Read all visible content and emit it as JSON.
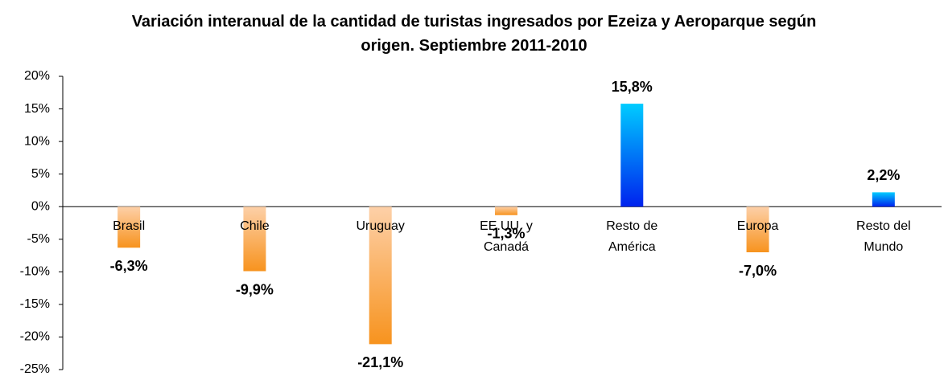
{
  "chart_data": {
    "type": "bar",
    "title": "Variación interanual de la cantidad de turistas ingresados por Ezeiza y Aeroparque según origen. Septiembre 2011-2010",
    "categories": [
      "Brasil",
      "Chile",
      "Uruguay",
      "EE.UU. y Canadá",
      "Resto de América",
      "Europa",
      "Resto del Mundo"
    ],
    "values": [
      -6.3,
      -9.9,
      -21.1,
      -1.3,
      15.8,
      -7.0,
      2.2
    ],
    "value_labels": [
      "-6,3%",
      "-9,9%",
      "-21,1%",
      "-1,3%",
      "15,8%",
      "-7,0%",
      "2,2%"
    ],
    "positive_colors": [
      "#00ccff",
      "#0022ee"
    ],
    "negative_colors": [
      "#fdd0a8",
      "#f7931e"
    ],
    "ylim": [
      -25,
      20
    ],
    "yticks": [
      {
        "value": -25,
        "label": "-25%"
      },
      {
        "value": -20,
        "label": "-20%"
      },
      {
        "value": -15,
        "label": "-15%"
      },
      {
        "value": -10,
        "label": "-10%"
      },
      {
        "value": -5,
        "label": "-5%"
      },
      {
        "value": 0,
        "label": "0%"
      },
      {
        "value": 5,
        "label": "5%"
      },
      {
        "value": 10,
        "label": "10%"
      },
      {
        "value": 15,
        "label": "15%"
      },
      {
        "value": 20,
        "label": "20%"
      }
    ]
  }
}
